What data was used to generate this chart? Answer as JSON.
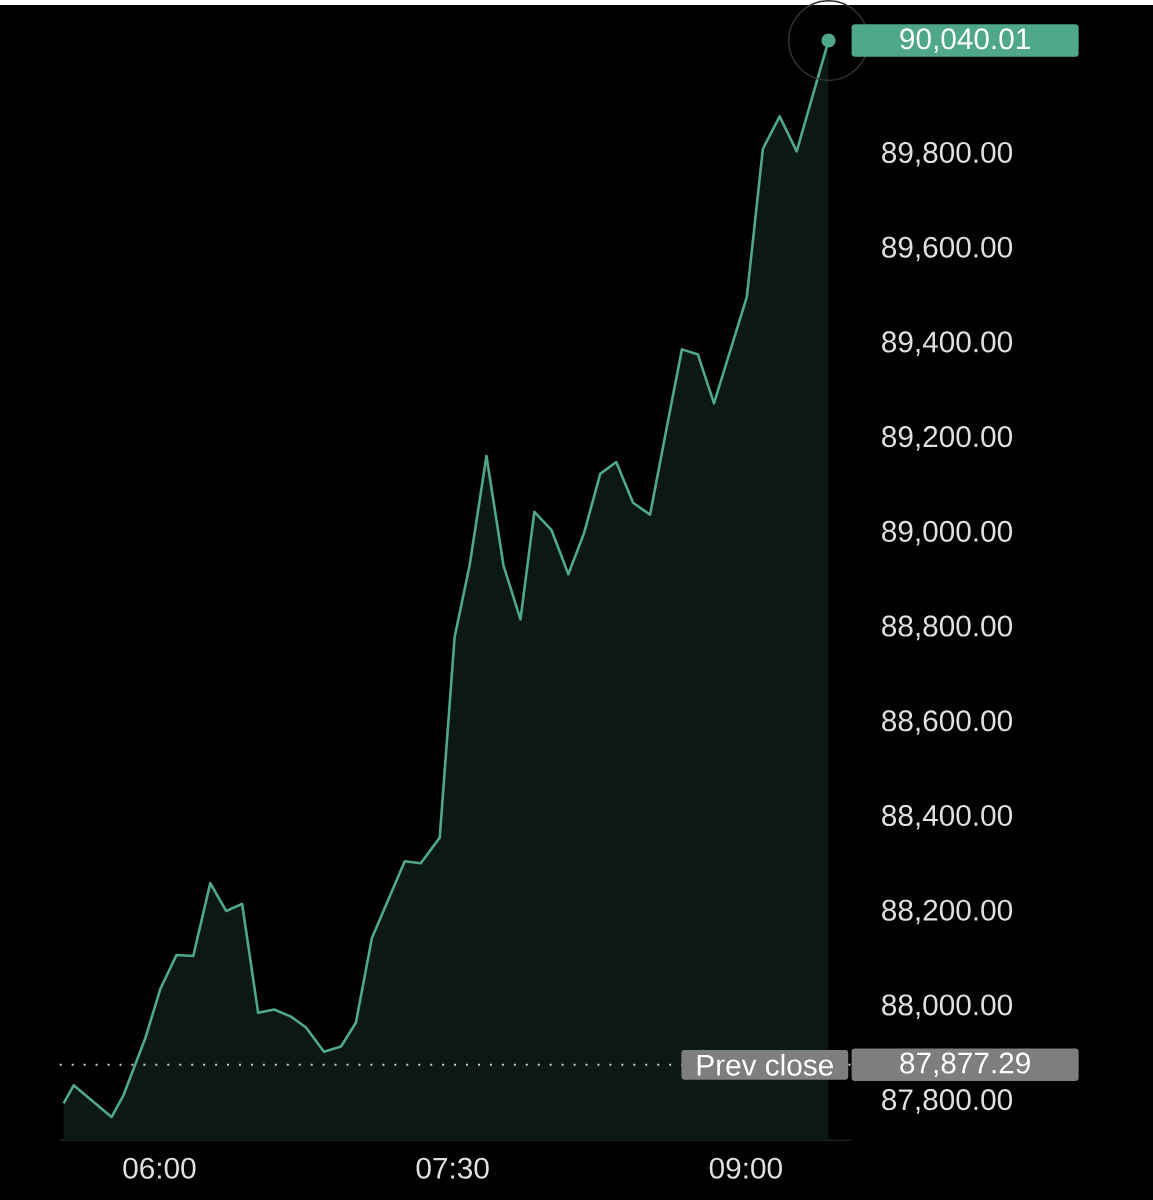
{
  "chart_data": {
    "type": "area",
    "x": [
      5.51,
      5.561,
      5.755,
      5.816,
      5.929,
      6.005,
      6.087,
      6.173,
      6.26,
      6.342,
      6.423,
      6.505,
      6.587,
      6.673,
      6.75,
      6.842,
      6.929,
      7.005,
      7.087,
      7.255,
      7.337,
      7.434,
      7.51,
      7.587,
      7.673,
      7.76,
      7.847,
      7.918,
      8.005,
      8.092,
      8.173,
      8.255,
      8.337,
      8.423,
      8.51,
      8.587,
      8.673,
      8.755,
      8.837,
      9.005,
      9.087,
      9.173,
      9.26,
      9.423
    ],
    "series": [
      {
        "color": "#4fa88a",
        "values": [
          87796,
          87834,
          87767,
          87813,
          87935,
          88038,
          88109,
          88107,
          88261,
          88202,
          88217,
          87987,
          87994,
          87979,
          87956,
          87905,
          87916,
          87966,
          88145,
          88307,
          88303,
          88357,
          88780,
          88932,
          89163,
          88932,
          88818,
          89045,
          89007,
          88913,
          89001,
          89125,
          89150,
          89064,
          89039,
          89205,
          89388,
          89377,
          89274,
          89499,
          89811,
          89880,
          89806,
          90040.01
        ]
      }
    ],
    "xlim": [
      5.49,
      9.54
    ],
    "ylim": [
      87718,
      90115
    ],
    "xticks": [
      {
        "value": 6,
        "label": "06:00"
      },
      {
        "value": 7.5,
        "label": "07:30"
      },
      {
        "value": 9,
        "label": "09:00"
      }
    ],
    "yticks": [
      {
        "value": 87800,
        "label": "87,800.00"
      },
      {
        "value": 88000,
        "label": "88,000.00"
      },
      {
        "value": 88200,
        "label": "88,200.00"
      },
      {
        "value": 88400,
        "label": "88,400.00"
      },
      {
        "value": 88600,
        "label": "88,600.00"
      },
      {
        "value": 88800,
        "label": "88,800.00"
      },
      {
        "value": 89000,
        "label": "89,000.00"
      },
      {
        "value": 89200,
        "label": "89,200.00"
      },
      {
        "value": 89400,
        "label": "89,400.00"
      },
      {
        "value": 89600,
        "label": "89,600.00"
      },
      {
        "value": 89800,
        "label": "89,800.00"
      }
    ],
    "ref_lines": [
      {
        "axis": "y",
        "value": 87877.29,
        "label": "Prev close",
        "color": "#cccccc",
        "line_style": "dotted"
      }
    ],
    "annotations": [
      {
        "text": "90,040.01",
        "x": 9.423,
        "y": 90040.01
      },
      "87,877.29"
    ]
  }
}
